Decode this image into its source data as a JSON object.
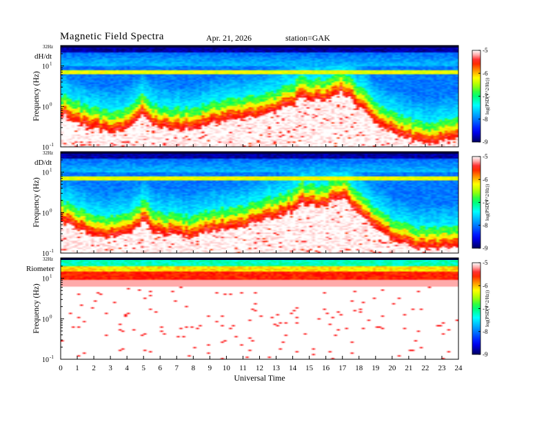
{
  "header": {
    "title": "Magnetic  Field  Spectra",
    "date": "Apr. 21, 2026",
    "station": "station=GAK"
  },
  "xaxis": {
    "label": "Universal Time",
    "min": 0,
    "max": 24,
    "ticks": [
      0,
      1,
      2,
      3,
      4,
      5,
      6,
      7,
      8,
      9,
      10,
      11,
      12,
      13,
      14,
      15,
      16,
      17,
      18,
      19,
      20,
      21,
      22,
      23,
      24
    ]
  },
  "colors": {
    "background": "#ffffff",
    "scale": [
      "#000060",
      "#0000ff",
      "#00a0ff",
      "#00ffff",
      "#00ff60",
      "#a0ff00",
      "#ffff00",
      "#ff8000",
      "#ff0000",
      "#ffb0b0",
      "#ffffff"
    ]
  },
  "panels": [
    {
      "name": "dH/dt",
      "ylabel": "Frequency  (Hz)",
      "top_label": "32Hz",
      "yticks": [
        "10",
        "10",
        "10"
      ],
      "yexp": [
        "1",
        "0",
        "-1"
      ],
      "cbar_ticks": [
        "-5",
        "-6",
        "-7",
        "-8",
        "-9"
      ],
      "cbar_label": "log(PSD(V^2/Hz))"
    },
    {
      "name": "dD/dt",
      "ylabel": "Frequency  (Hz)",
      "top_label": "32Hz",
      "yticks": [
        "10",
        "10",
        "10"
      ],
      "yexp": [
        "1",
        "0",
        "-1"
      ],
      "cbar_ticks": [
        "-5",
        "-6",
        "-7",
        "-8",
        "-9"
      ],
      "cbar_label": "log(PSD(V^2/Hz))"
    },
    {
      "name": "Riometer",
      "ylabel": "Frequency  (Hz)",
      "top_label": "32Hz",
      "yticks": [
        "10",
        "10",
        "10"
      ],
      "yexp": [
        "1",
        "0",
        "-1"
      ],
      "cbar_ticks": [
        "-5",
        "-6",
        "-7",
        "-8",
        "-9"
      ],
      "cbar_label": "log(PSD(V^2/Hz))"
    }
  ],
  "chart_data": {
    "type": "heatmap",
    "title": "Magnetic  Field  Spectra",
    "xlabel": "Universal Time",
    "ylabel": "Frequency  (Hz)",
    "xlim": [
      0,
      24
    ],
    "ylim_log10": [
      -1,
      1.505
    ],
    "zlim": [
      -9,
      -5
    ],
    "zlabel": "log(PSD(V^2/Hz))",
    "series": [
      {
        "name": "dH/dt",
        "cutoff_log10_hz": {
          "t": [
            0,
            0.5,
            1,
            2,
            3,
            4,
            4.8,
            5,
            5.5,
            6,
            7,
            8,
            9,
            10,
            11,
            12,
            13,
            14,
            14.5,
            15,
            15.5,
            16,
            16.5,
            17,
            17.5,
            18,
            18.5,
            19,
            20,
            21,
            22,
            23,
            24
          ],
          "f": [
            -0.1,
            -0.15,
            -0.3,
            -0.45,
            -0.5,
            -0.45,
            -0.2,
            -0.05,
            -0.3,
            -0.4,
            -0.45,
            -0.45,
            -0.3,
            -0.25,
            -0.2,
            -0.1,
            0.0,
            0.15,
            0.35,
            0.3,
            0.25,
            0.3,
            0.4,
            0.45,
            0.3,
            0.1,
            -0.1,
            -0.3,
            -0.55,
            -0.7,
            -0.8,
            -0.75,
            -0.7
          ]
        },
        "band_log10_hz": 0.85
      },
      {
        "name": "dD/dt",
        "cutoff_log10_hz": {
          "t": [
            0,
            0.5,
            1,
            2,
            3,
            4,
            4.8,
            5,
            5.5,
            6,
            7,
            8,
            9,
            10,
            11,
            12,
            13,
            14,
            14.5,
            15,
            15.5,
            16,
            16.5,
            17,
            17.5,
            18,
            18.5,
            19,
            20,
            21,
            22,
            23,
            24
          ],
          "f": [
            -0.1,
            -0.2,
            -0.3,
            -0.45,
            -0.5,
            -0.45,
            -0.2,
            -0.05,
            -0.3,
            -0.4,
            -0.45,
            -0.5,
            -0.35,
            -0.3,
            -0.25,
            -0.1,
            0.0,
            0.15,
            0.35,
            0.3,
            0.25,
            0.3,
            0.45,
            0.5,
            0.3,
            0.1,
            -0.1,
            -0.3,
            -0.55,
            -0.7,
            -0.8,
            -0.75,
            -0.7
          ]
        },
        "band_log10_hz": 0.85
      },
      {
        "name": "Riometer",
        "cutoff_log10_hz": {
          "t": [
            0,
            24
          ],
          "f": [
            0.95,
            0.95
          ]
        },
        "band_log10_hz": 1.3
      }
    ]
  }
}
